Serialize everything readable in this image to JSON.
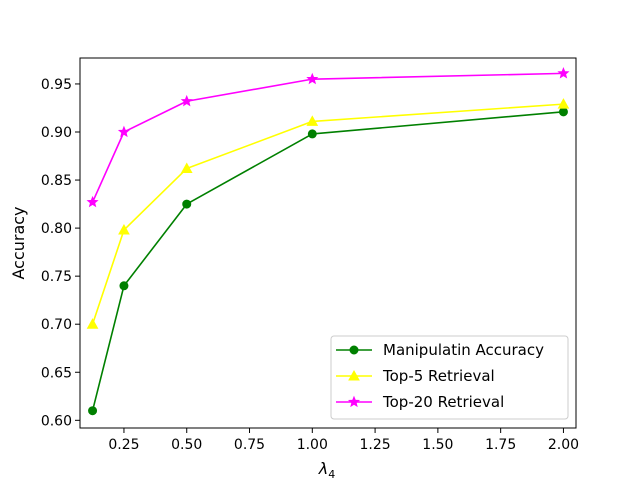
{
  "chart_data": {
    "type": "line",
    "xlabel_base": "λ",
    "xlabel_sub": "4",
    "ylabel": "Accuracy",
    "xlim": [
      0.075,
      2.05
    ],
    "ylim": [
      0.592,
      0.977
    ],
    "xticks": [
      0.25,
      0.5,
      0.75,
      1.0,
      1.25,
      1.5,
      1.75,
      2.0
    ],
    "xtick_labels": [
      "0.25",
      "0.50",
      "0.75",
      "1.00",
      "1.25",
      "1.50",
      "1.75",
      "2.00"
    ],
    "yticks": [
      0.6,
      0.65,
      0.7,
      0.75,
      0.8,
      0.85,
      0.9,
      0.95
    ],
    "ytick_labels": [
      "0.60",
      "0.65",
      "0.70",
      "0.75",
      "0.80",
      "0.85",
      "0.90",
      "0.95"
    ],
    "grid": false,
    "legend_position": "lower-right",
    "series": [
      {
        "name": "Manipulatin Accuracy",
        "color": "#008000",
        "marker": "circle",
        "x": [
          0.125,
          0.25,
          0.5,
          1.0,
          2.0
        ],
        "y": [
          0.61,
          0.74,
          0.825,
          0.898,
          0.921
        ]
      },
      {
        "name": "Top-5 Retrieval",
        "color": "#ffff00",
        "marker": "triangle",
        "x": [
          0.125,
          0.25,
          0.5,
          1.0,
          2.0
        ],
        "y": [
          0.7,
          0.798,
          0.862,
          0.911,
          0.929
        ]
      },
      {
        "name": "Top-20 Retrieval",
        "color": "#ff00ff",
        "marker": "star",
        "x": [
          0.125,
          0.25,
          0.5,
          1.0,
          2.0
        ],
        "y": [
          0.827,
          0.9,
          0.932,
          0.955,
          0.961
        ]
      }
    ]
  }
}
